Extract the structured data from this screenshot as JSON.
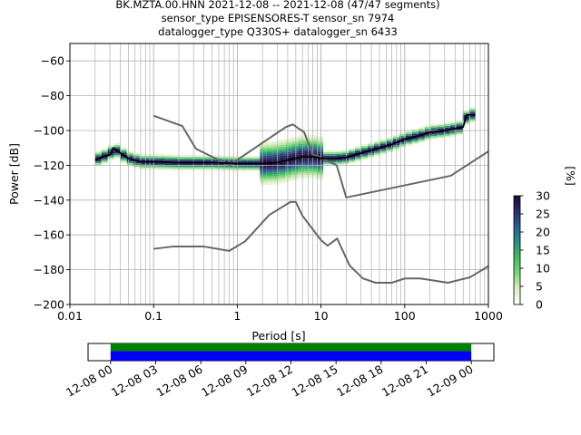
{
  "chart_data": {
    "type": "heatmap",
    "title_lines": [
      "BK.MZTA.00.HNN   2021-12-08 -- 2021-12-08  (47/47 segments)",
      "sensor_type EPISENSORES-T sensor_sn 7974",
      "datalogger_type Q330S+ datalogger_sn 6433"
    ],
    "xlabel": "Period [s]",
    "ylabel": "Power [dB]",
    "x_scale": "log",
    "xlim": [
      0.01,
      1000
    ],
    "ylim": [
      -200,
      -50
    ],
    "x_ticks": [
      0.01,
      0.1,
      1,
      10,
      100,
      1000
    ],
    "x_tick_labels": [
      "0.01",
      "0.1",
      "1",
      "10",
      "100",
      "1000"
    ],
    "y_ticks": [
      -200,
      -180,
      -160,
      -140,
      -120,
      -100,
      -80,
      -60
    ],
    "y_tick_labels": [
      "−200",
      "−180",
      "−160",
      "−140",
      "−120",
      "−100",
      "−80",
      "−60"
    ],
    "grid": true,
    "colorbar": {
      "label": "[%]",
      "range": [
        0,
        30
      ],
      "ticks": [
        0,
        5,
        10,
        15,
        20,
        25,
        30
      ],
      "tick_labels": [
        "0",
        "5",
        "10",
        "15",
        "20",
        "25",
        "30"
      ],
      "colors": [
        "#ffffff",
        "#d9efbf",
        "#7fd77a",
        "#3fbf5f",
        "#2d8f7f",
        "#2b5f8f",
        "#2a2f6f",
        "#1a0a3a"
      ]
    },
    "median_line": {
      "x": [
        0.02,
        0.025,
        0.03,
        0.033,
        0.04,
        0.05,
        0.07,
        0.1,
        0.2,
        0.5,
        1,
        2,
        3,
        4,
        5,
        6,
        8,
        10,
        15,
        20,
        30,
        50,
        70,
        100,
        150,
        200,
        300,
        400,
        500,
        550,
        700
      ],
      "y": [
        -117,
        -115,
        -114,
        -110,
        -113,
        -116,
        -118,
        -118,
        -118.5,
        -118.5,
        -119,
        -119,
        -118.5,
        -117,
        -116,
        -115,
        -115,
        -116,
        -116,
        -115.5,
        -113,
        -110,
        -108,
        -105,
        -103,
        -101,
        -100,
        -99,
        -98,
        -91,
        -91
      ]
    },
    "nlnm_line": {
      "x": [
        0.1,
        0.17,
        0.4,
        0.8,
        1.24,
        2.4,
        4.3,
        5,
        6,
        10,
        12,
        15.6,
        21.9,
        31.6,
        45,
        70,
        101,
        154,
        328,
        600,
        1000
      ],
      "y": [
        -168,
        -166.7,
        -166.7,
        -169.2,
        -163.7,
        -148.6,
        -141.1,
        -141.1,
        -149,
        -163,
        -166.2,
        -162.1,
        -177.5,
        -185,
        -187.5,
        -187.5,
        -185,
        -185,
        -187.5,
        -184.4,
        -178
      ]
    },
    "nhnm_line": {
      "x": [
        0.1,
        0.22,
        0.32,
        0.8,
        3.8,
        4.6,
        6.3,
        7.9,
        15.4,
        20,
        354.8,
        1000
      ],
      "y": [
        -91.5,
        -97.4,
        -110.5,
        -120,
        -98,
        -96.5,
        -101,
        -113.5,
        -120,
        -138.5,
        -126,
        -112
      ]
    },
    "time_axis": {
      "tick_labels": [
        "12-08 00",
        "12-08 03",
        "12-08 06",
        "12-08 09",
        "12-08 12",
        "12-08 15",
        "12-08 18",
        "12-08 21",
        "12-09 00"
      ],
      "span_hours": [
        -1.5,
        25.5
      ],
      "data_coverage_hours": [
        0,
        24
      ],
      "coverage_colors": [
        "#008000",
        "#0000ff"
      ]
    }
  }
}
